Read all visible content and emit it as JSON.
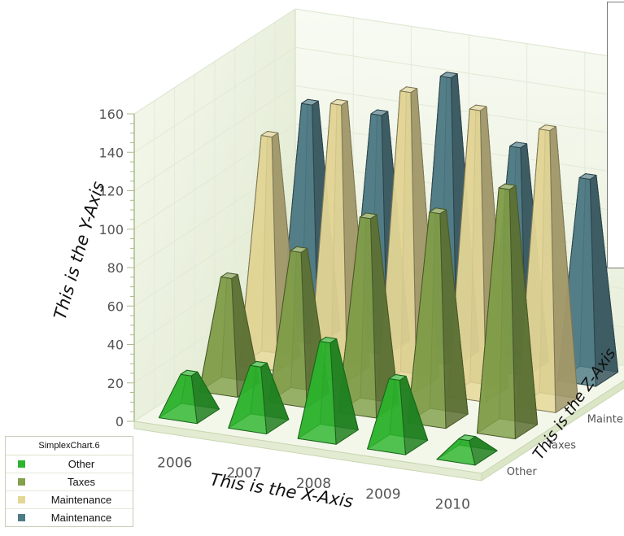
{
  "chart_data": {
    "type": "bar",
    "style": "3d-pyramid",
    "title": "",
    "xlabel": "This is the X-Axis",
    "ylabel": "This is the Y-Axis",
    "zlabel": "This is the Z-Axis",
    "ylim": [
      0,
      160
    ],
    "y_ticks": [
      "0",
      "20",
      "40",
      "60",
      "80",
      "100",
      "120",
      "140",
      "160"
    ],
    "categories": [
      "2006",
      "2007",
      "2008",
      "2009",
      "2010"
    ],
    "z_ticks": [
      "Other",
      "Taxes",
      "Maintenance",
      "Maintenance"
    ],
    "series": [
      {
        "name": "Other",
        "color": "#2db52d",
        "values": [
          21,
          31,
          49,
          35,
          9
        ]
      },
      {
        "name": "Taxes",
        "color": "#83a04a",
        "values": [
          58,
          77,
          100,
          108,
          126
        ]
      },
      {
        "name": "Maintenance",
        "color": "#e4d796",
        "values": [
          118,
          140,
          152,
          148,
          143
        ]
      },
      {
        "name": "Maintenance",
        "color": "#4e7b86",
        "values": [
          121,
          121,
          146,
          115,
          104
        ]
      }
    ],
    "legend": {
      "title": "SimplexChart.6",
      "placement": "bottom-left"
    },
    "grid": true
  }
}
